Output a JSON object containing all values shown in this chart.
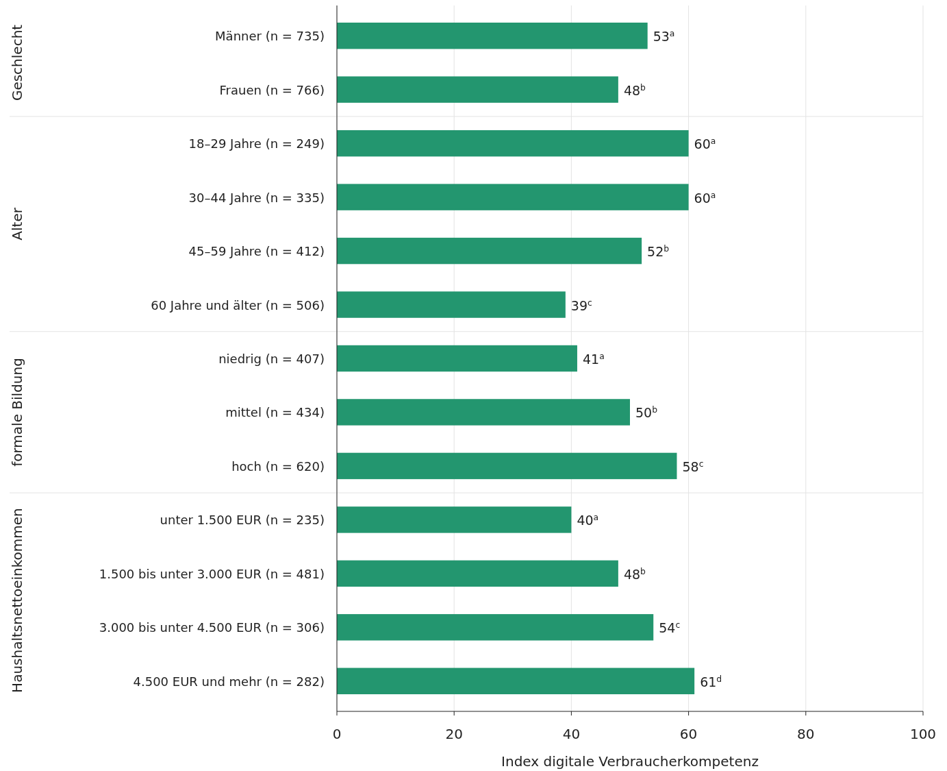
{
  "chart_data": {
    "type": "bar",
    "orientation": "horizontal",
    "xlabel": "Index digitale Verbraucherkompetenz",
    "categories": [
      "Männer (n = 735)",
      "Frauen (n = 766)",
      "18–29 Jahre (n = 249)",
      "30–44 Jahre (n = 335)",
      "45–59 Jahre (n = 412)",
      "60 Jahre und älter (n = 506)",
      "niedrig (n = 407)",
      "mittel (n = 434)",
      "hoch (n = 620)",
      "unter 1.500 EUR (n = 235)",
      "1.500 bis unter 3.000 EUR (n = 481)",
      "3.000 bis unter 4.500 EUR (n = 306)",
      "4.500 EUR und mehr (n = 282)"
    ],
    "values": [
      53,
      48,
      60,
      60,
      52,
      39,
      41,
      50,
      58,
      40,
      48,
      54,
      61
    ],
    "value_labels": [
      "53$^{a}$",
      "48$^{b}$",
      "60$^{a}$",
      "60$^{a}$",
      "52$^{b}$",
      "39$^{c}$",
      "41$^{a}$",
      "50$^{b}$",
      "58$^{c}$",
      "40$^{a}$",
      "48$^{b}$",
      "54$^{c}$",
      "61$^{d}$"
    ],
    "color": "#23966f",
    "xlim": [
      0,
      100
    ],
    "xticks": [
      0,
      20,
      40,
      60,
      80,
      100
    ],
    "grid": "x",
    "annotations": [
      "Geschlecht",
      "Alter",
      "formale Bildung",
      "Haushaltsnettoeinkommen"
    ]
  }
}
